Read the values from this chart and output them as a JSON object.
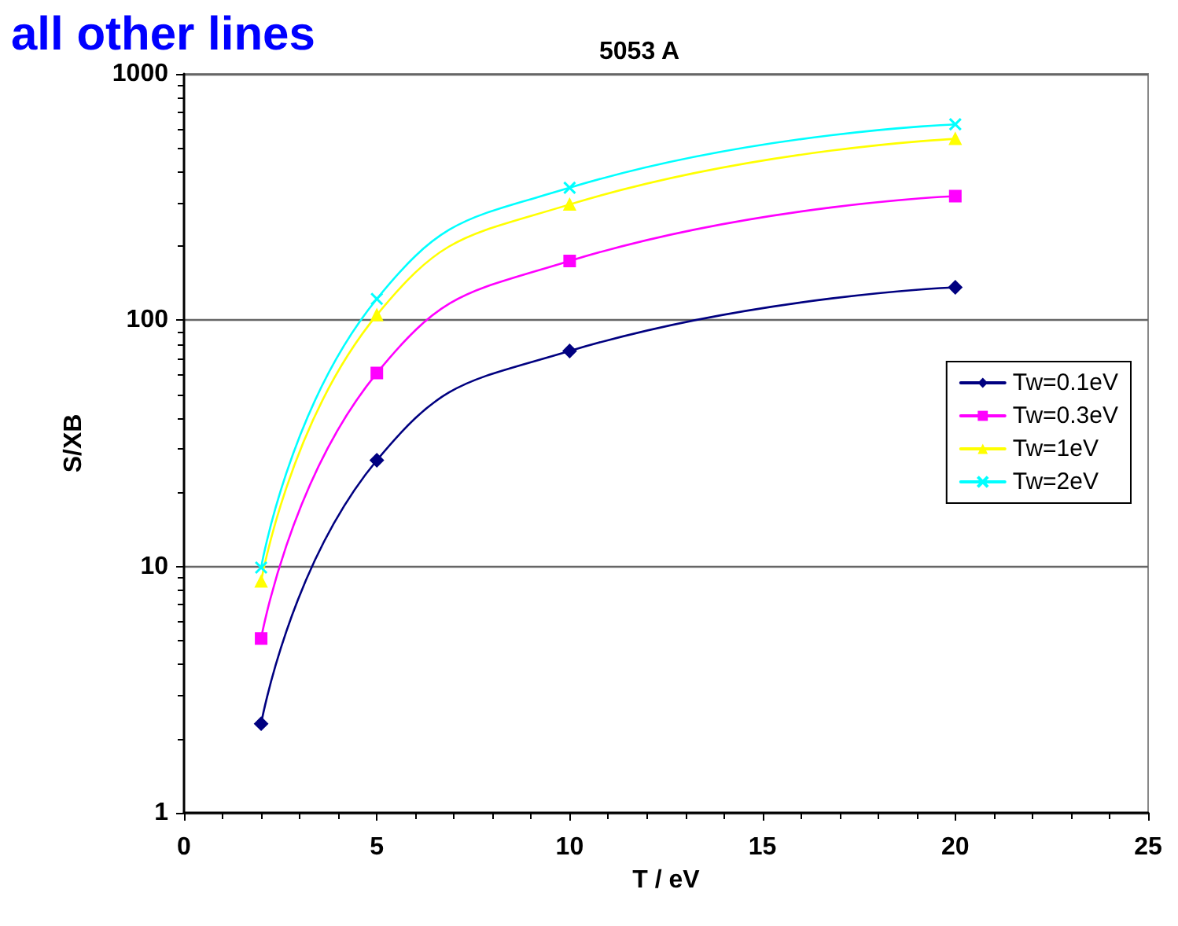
{
  "chart_data": {
    "type": "line",
    "title": "all other lines",
    "subtitle": "5053 A",
    "xlabel": "T / eV",
    "ylabel": "S/XB",
    "x": [
      2,
      5,
      10,
      20
    ],
    "series": [
      {
        "name": "Tw=0.1eV",
        "color": "#000080",
        "marker": "diamond",
        "values": [
          2.3,
          27,
          75,
          136
        ]
      },
      {
        "name": "Tw=0.3eV",
        "color": "#ff00ff",
        "marker": "square",
        "values": [
          5.1,
          61,
          174,
          319
        ]
      },
      {
        "name": "Tw=1eV",
        "color": "#ffff00",
        "marker": "triangle",
        "values": [
          8.7,
          105,
          295,
          545
        ]
      },
      {
        "name": "Tw=2eV",
        "color": "#00ffff",
        "marker": "cross",
        "values": [
          9.9,
          122,
          345,
          624
        ]
      }
    ],
    "xlim": [
      0,
      25
    ],
    "xticks": [
      0,
      5,
      10,
      15,
      20,
      25
    ],
    "ylim": [
      1,
      1000
    ],
    "yticks": [
      1,
      10,
      100,
      1000
    ],
    "log": "y",
    "grid": "y",
    "legend": "right",
    "line_style": "solid"
  }
}
